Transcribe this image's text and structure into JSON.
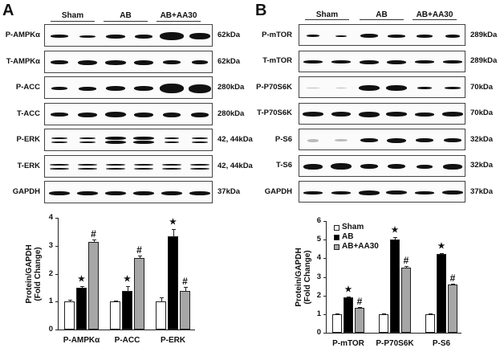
{
  "panels": {
    "A": {
      "letter": "A",
      "groups": [
        "Sham",
        "AB",
        "AB+AA30"
      ],
      "blots": [
        {
          "label": "P-AMPKα",
          "kda": "62kDa"
        },
        {
          "label": "T-AMPKα",
          "kda": "62kDa"
        },
        {
          "label": "P-ACC",
          "kda": "280kDa"
        },
        {
          "label": "T-ACC",
          "kda": "280kDa"
        },
        {
          "label": "P-ERK",
          "kda": "42, 44kDa"
        },
        {
          "label": "T-ERK",
          "kda": "42, 44kDa"
        },
        {
          "label": "GAPDH",
          "kda": "37kDa"
        }
      ]
    },
    "B": {
      "letter": "B",
      "groups": [
        "Sham",
        "AB",
        "AB+AA30"
      ],
      "blots": [
        {
          "label": "P-mTOR",
          "kda": "289kDa"
        },
        {
          "label": "T-mTOR",
          "kda": "289kDa"
        },
        {
          "label": "P-P70S6K",
          "kda": "70kDa"
        },
        {
          "label": "T-P70S6K",
          "kda": "70kDa"
        },
        {
          "label": "P-S6",
          "kda": "32kDa"
        },
        {
          "label": "T-S6",
          "kda": "32kDa"
        },
        {
          "label": "GAPDH",
          "kda": "37kDa"
        }
      ]
    }
  },
  "colors": {
    "sham": "#ffffff",
    "ab": "#000000",
    "ab_aa30": "#a6a6a6"
  },
  "chart_data": [
    {
      "type": "bar",
      "panel": "A",
      "title": "",
      "xlabel": "",
      "ylabel": "Protein/GAPDH\n(Fold Change)",
      "ylabel_line1": "Protein/GAPDH",
      "ylabel_line2": "(Fold Change)",
      "ylim": [
        0,
        4
      ],
      "yticks": [
        0,
        1,
        2,
        3,
        4
      ],
      "categories": [
        "P-AMPKα",
        "P-ACC",
        "P-ERK"
      ],
      "series": [
        {
          "name": "Sham",
          "values": [
            1.0,
            1.0,
            1.0
          ],
          "errors": [
            0.06,
            0.05,
            0.16
          ]
        },
        {
          "name": "AB",
          "values": [
            1.5,
            1.38,
            3.35
          ],
          "errors": [
            0.04,
            0.18,
            0.25
          ]
        },
        {
          "name": "AB+AA30",
          "values": [
            3.15,
            2.55,
            1.38
          ],
          "errors": [
            0.07,
            0.1,
            0.15
          ]
        }
      ],
      "annotations": [
        {
          "category": "P-AMPKα",
          "series": "AB",
          "mark": "*"
        },
        {
          "category": "P-AMPKα",
          "series": "AB+AA30",
          "mark": "#"
        },
        {
          "category": "P-ACC",
          "series": "AB",
          "mark": "*"
        },
        {
          "category": "P-ACC",
          "series": "AB+AA30",
          "mark": "#"
        },
        {
          "category": "P-ERK",
          "series": "AB",
          "mark": "*"
        },
        {
          "category": "P-ERK",
          "series": "AB+AA30",
          "mark": "#"
        }
      ],
      "legend": null,
      "grid": false
    },
    {
      "type": "bar",
      "panel": "B",
      "title": "",
      "xlabel": "",
      "ylabel": "Protein/GAPDH\n(Fold Change)",
      "ylabel_line1": "Protein/GAPDH",
      "ylabel_line2": "(Fold Change)",
      "ylim": [
        0,
        6
      ],
      "yticks": [
        0,
        1,
        2,
        3,
        4,
        5,
        6
      ],
      "categories": [
        "P-mTOR",
        "P-P70S6K",
        "P-S6"
      ],
      "series": [
        {
          "name": "Sham",
          "values": [
            1.0,
            1.0,
            1.0
          ],
          "errors": [
            0.04,
            0.04,
            0.04
          ]
        },
        {
          "name": "AB",
          "values": [
            1.9,
            5.0,
            4.22
          ],
          "errors": [
            0.06,
            0.15,
            0.05
          ]
        },
        {
          "name": "AB+AA30",
          "values": [
            1.35,
            3.5,
            2.58
          ],
          "errors": [
            0.05,
            0.07,
            0.04
          ]
        }
      ],
      "annotations": [
        {
          "category": "P-mTOR",
          "series": "AB",
          "mark": "*"
        },
        {
          "category": "P-mTOR",
          "series": "AB+AA30",
          "mark": "#"
        },
        {
          "category": "P-P70S6K",
          "series": "AB",
          "mark": "*"
        },
        {
          "category": "P-P70S6K",
          "series": "AB+AA30",
          "mark": "#"
        },
        {
          "category": "P-S6",
          "series": "AB",
          "mark": "*"
        },
        {
          "category": "P-S6",
          "series": "AB+AA30",
          "mark": "#"
        }
      ],
      "legend": {
        "position": "upper-left",
        "entries": [
          "Sham",
          "AB",
          "AB+AA30"
        ]
      },
      "grid": false
    }
  ]
}
